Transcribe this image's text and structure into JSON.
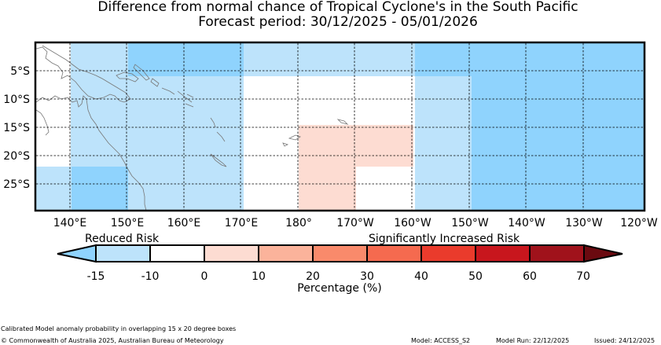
{
  "header": {
    "title": "Difference from normal chance of Tropical Cyclone's in the South Pacific",
    "subtitle": "Forecast period: 30/12/2025 - 05/01/2026"
  },
  "map": {
    "lat_labels": [
      "5°S",
      "10°S",
      "15°S",
      "20°S",
      "25°S"
    ],
    "lon_labels": [
      "140°E",
      "150°E",
      "160°E",
      "170°E",
      "180°",
      "170°W",
      "160°W",
      "150°W",
      "140°W",
      "130°W",
      "120°W"
    ],
    "lon_range": [
      135,
      240
    ],
    "lat_range": [
      0,
      -30
    ],
    "regions": [
      {
        "lon": [
          140,
          150
        ],
        "lat": [
          0,
          -15
        ],
        "class": "-15 to -10"
      },
      {
        "lon": [
          150,
          170
        ],
        "lat": [
          0,
          -5
        ],
        "class": "-15 to -10 (stronger)"
      },
      {
        "lon": [
          155,
          170
        ],
        "lat": [
          -5,
          -30
        ],
        "class": "-15 to -10"
      },
      {
        "lon": [
          135,
          140
        ],
        "lat": [
          -22,
          -30
        ],
        "class": "-15 to -10"
      },
      {
        "lon": [
          140,
          150
        ],
        "lat": [
          -15,
          -22
        ],
        "class": "-15 to -10"
      },
      {
        "lon": [
          140,
          150
        ],
        "lat": [
          -22,
          -30
        ],
        "class": "-15 to -10 (stronger)"
      },
      {
        "lon": [
          150,
          155
        ],
        "lat": [
          -5,
          -30
        ],
        "class": "-15 to -10"
      },
      {
        "lon": [
          170,
          200
        ],
        "lat": [
          0,
          -5
        ],
        "class": "-15 to -10"
      },
      {
        "lon": [
          180,
          200
        ],
        "lat": [
          -15,
          -22
        ],
        "class": "0 to 10"
      },
      {
        "lon": [
          180,
          190
        ],
        "lat": [
          -22,
          -30
        ],
        "class": "0 to 10"
      },
      {
        "lon": [
          200,
          210
        ],
        "lat": [
          0,
          -5
        ],
        "class": "-15 to -10 (stronger)"
      },
      {
        "lon": [
          200,
          210
        ],
        "lat": [
          -5,
          -30
        ],
        "class": "-15 to -10"
      },
      {
        "lon": [
          210,
          240
        ],
        "lat": [
          0,
          -30
        ],
        "class": "-15 to -10 (stronger)"
      }
    ]
  },
  "legend": {
    "left_label": "Reduced Risk",
    "right_label": "Significantly Increased Risk",
    "ticks": [
      "-15",
      "-10",
      "0",
      "10",
      "20",
      "30",
      "40",
      "50",
      "60",
      "70"
    ],
    "colors": [
      "#bde3fb",
      "#ffffff",
      "#fddcd2",
      "#fbb39b",
      "#f98a6b",
      "#f56a4f",
      "#ea3b2c",
      "#c8161d",
      "#a0121b"
    ],
    "under_color": "#8fd3fd",
    "over_color": "#6b0a10",
    "axis_label": "Percentage (%)"
  },
  "footer": {
    "note": "Calibrated Model anomaly probability in overlapping 15 x 20 degree boxes",
    "copyright": "© Commonwealth of Australia 2025, Australian Bureau of Meteorology",
    "model": "Model: ACCESS_S2",
    "model_run": "Model Run: 22/12/2025",
    "issued": "Issued: 24/12/2025"
  }
}
